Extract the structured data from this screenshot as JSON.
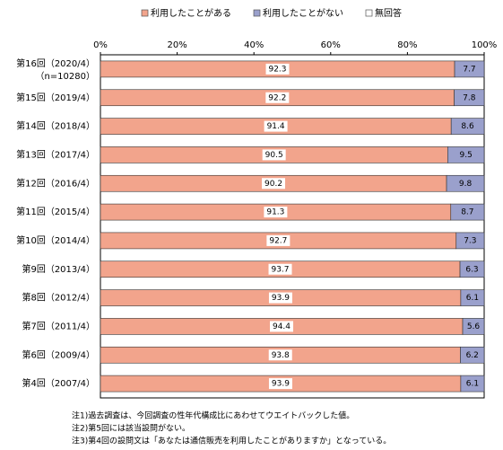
{
  "chart_data": {
    "type": "stacked-bar-horizontal",
    "categories": [
      "第16回（2020/4）",
      "第15回（2019/4）",
      "第14回（2018/4）",
      "第13回（2017/4）",
      "第12回（2016/4）",
      "第11回（2015/4）",
      "第10回（2014/4）",
      "第9回（2013/4）",
      "第8回（2012/4）",
      "第7回（2011/4）",
      "第6回（2009/4）",
      "第4回（2007/4）"
    ],
    "sample_size": "（n=10280）",
    "series": [
      {
        "name": "利用したことがある",
        "color": "#f2a48c",
        "values": [
          92.3,
          92.2,
          91.4,
          90.5,
          90.2,
          91.3,
          92.7,
          93.7,
          93.9,
          94.4,
          93.8,
          93.9
        ]
      },
      {
        "name": "利用したことがない",
        "color": "#9aa0cc",
        "values": [
          7.7,
          7.8,
          8.6,
          9.5,
          9.8,
          8.7,
          7.3,
          6.3,
          6.1,
          5.6,
          6.2,
          6.1
        ]
      },
      {
        "name": "無回答",
        "color": "#ffffff",
        "values": [
          0,
          0,
          0,
          0,
          0,
          0,
          0,
          0,
          0,
          0,
          0,
          0
        ]
      }
    ],
    "xlim": [
      0,
      100
    ],
    "xticks": [
      {
        "value": 0,
        "label": "0%"
      },
      {
        "value": 20,
        "label": "20%"
      },
      {
        "value": 40,
        "label": "40%"
      },
      {
        "value": 60,
        "label": "60%"
      },
      {
        "value": 80,
        "label": "80%"
      },
      {
        "value": 100,
        "label": "100%"
      }
    ],
    "notes": [
      "注1)過去調査は、今回調査の性年代構成比にあわせてウエイトバックした値。",
      "注2)第5回には該当設問がない。",
      "注3)第4回の設問文は「あなたは通信販売を利用したことがありますか」となっている。"
    ]
  }
}
